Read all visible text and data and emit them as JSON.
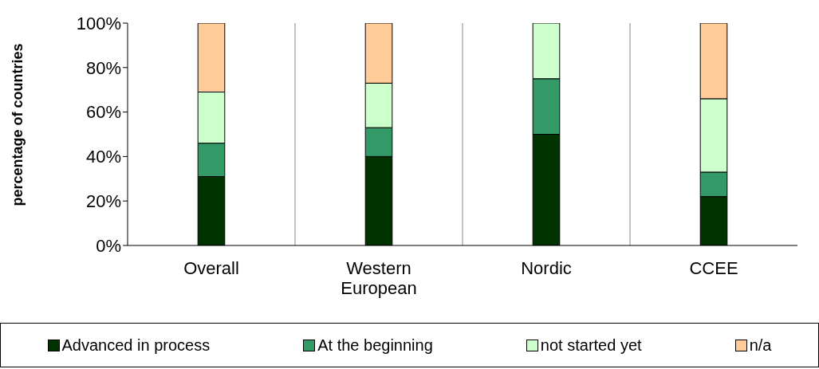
{
  "chart_data": {
    "type": "bar",
    "stacked": true,
    "ylabel": "percentage of countries",
    "categories": [
      "Overall",
      "Western European",
      "Nordic",
      "CCEE"
    ],
    "series": [
      {
        "name": "Advanced in process",
        "color": "#003300",
        "values": [
          31,
          40,
          50,
          22
        ]
      },
      {
        "name": "At the beginning",
        "color": "#339966",
        "values": [
          15,
          13,
          25,
          11
        ]
      },
      {
        "name": "not started yet",
        "color": "#ccffcc",
        "values": [
          23,
          20,
          25,
          33
        ]
      },
      {
        "name": "n/a",
        "color": "#ffcc99",
        "values": [
          31,
          27,
          0,
          34
        ]
      }
    ],
    "ylim": [
      0,
      100
    ],
    "yticks": [
      {
        "value": 0,
        "label": "0%"
      },
      {
        "value": 20,
        "label": "20%"
      },
      {
        "value": 40,
        "label": "40%"
      },
      {
        "value": 60,
        "label": "60%"
      },
      {
        "value": 80,
        "label": "80%"
      },
      {
        "value": 100,
        "label": "100%"
      }
    ],
    "grid": "x",
    "legend": "bottom"
  }
}
